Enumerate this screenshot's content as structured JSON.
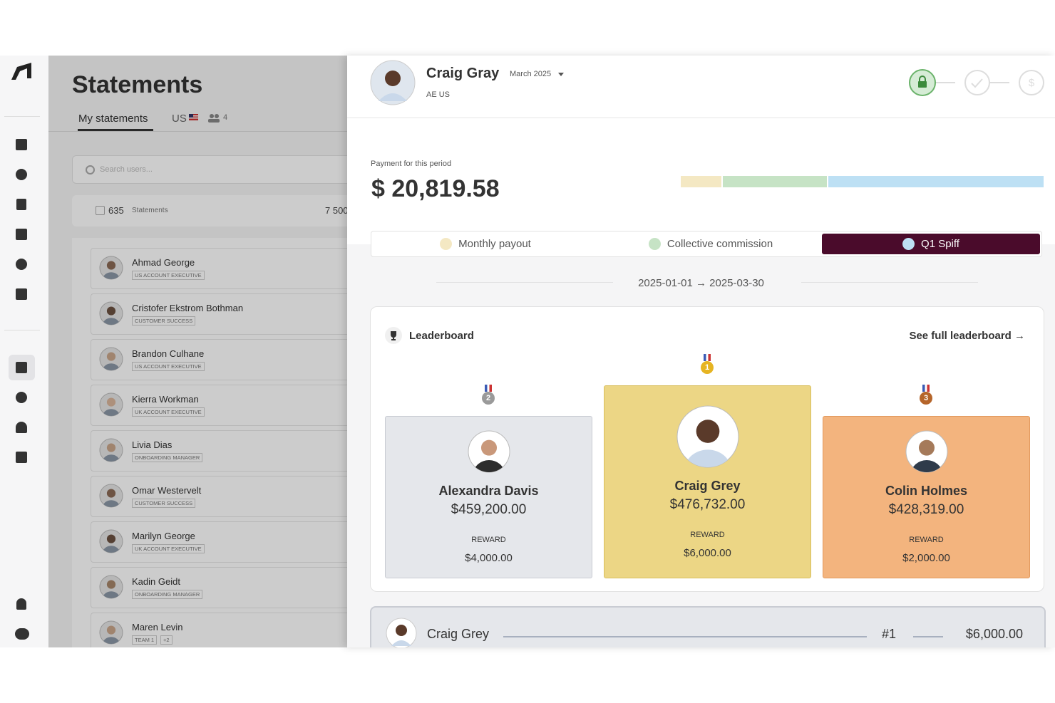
{
  "statements": {
    "title": "Statements",
    "tabs": [
      "My statements",
      "US"
    ],
    "team_count": 4,
    "search_placeholder": "Search users...",
    "count": 635,
    "count_label": "Statements",
    "total": "7 500",
    "users": [
      {
        "name": "Ahmad George",
        "role": "US ACCOUNT EXECUTIVE"
      },
      {
        "name": "Cristofer Ekstrom Bothman",
        "role": "CUSTOMER SUCCESS"
      },
      {
        "name": "Brandon Culhane",
        "role": "US ACCOUNT EXECUTIVE"
      },
      {
        "name": "Kierra Workman",
        "role": "UK ACCOUNT EXECUTIVE"
      },
      {
        "name": "Livia Dias",
        "role": "ONBOARDING MANAGER"
      },
      {
        "name": "Omar Westervelt",
        "role": "CUSTOMER SUCCESS"
      },
      {
        "name": "Marilyn George",
        "role": "UK ACCOUNT EXECUTIVE"
      },
      {
        "name": "Kadin Geidt",
        "role": "ONBOARDING MANAGER"
      },
      {
        "name": "Maren Levin",
        "role": "TEAM 1",
        "extra": "+2"
      }
    ]
  },
  "profile": {
    "name": "Craig Gray",
    "period": "March 2025",
    "team": "AE US"
  },
  "payment": {
    "label": "Payment for this period",
    "amount": "$ 20,819.58"
  },
  "plan_tabs": [
    "Monthly payout",
    "Collective commission",
    "Q1 Spiff"
  ],
  "selected_tab": 2,
  "date_range": "2025-01-01 → 2025-03-30",
  "leaderboard": {
    "title": "Leaderboard",
    "link": "See full leaderboard →",
    "reward_label": "REWARD",
    "podium": [
      {
        "rank": 2,
        "name": "Alexandra Davis",
        "amount": "$459,200.00",
        "reward": "$4,000.00"
      },
      {
        "rank": 1,
        "name": "Craig Grey",
        "amount": "$476,732.00",
        "reward": "$6,000.00"
      },
      {
        "rank": 3,
        "name": "Colin Holmes",
        "amount": "$428,319.00",
        "reward": "$2,000.00"
      }
    ]
  },
  "current": {
    "name": "Craig Grey",
    "rank": "#1",
    "reward": "$6,000.00"
  }
}
